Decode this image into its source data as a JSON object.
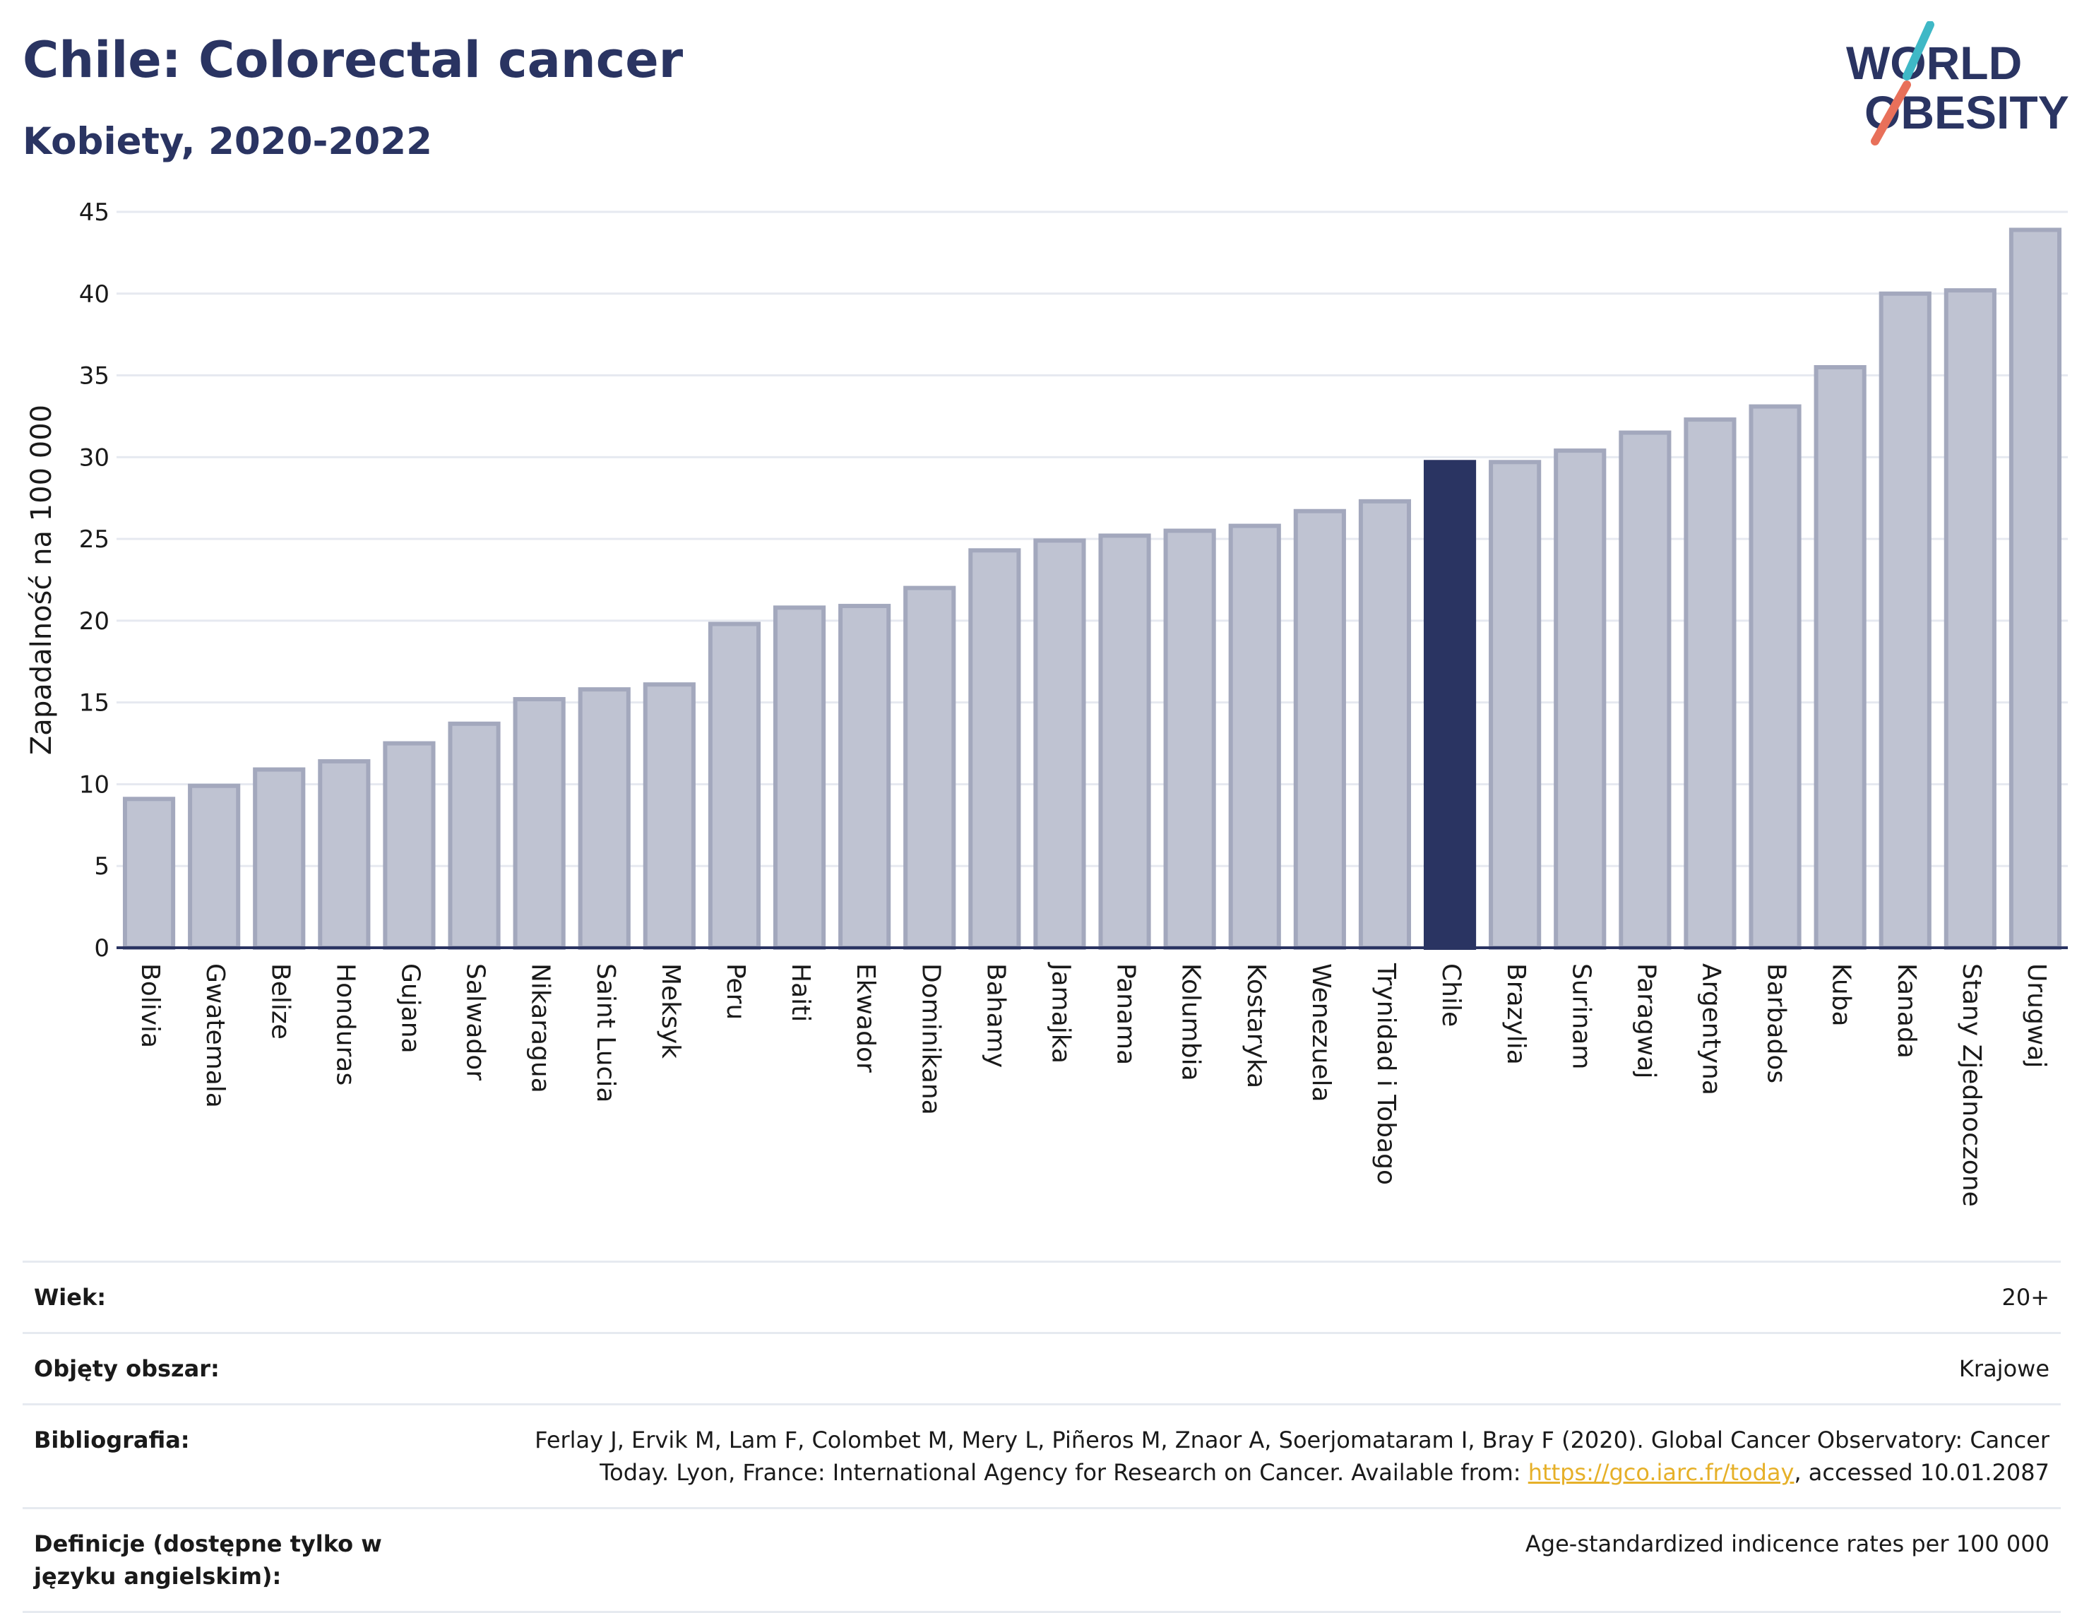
{
  "header": {
    "title": "Chile: Colorectal cancer",
    "subtitle": "Kobiety, 2020-2022"
  },
  "logo": {
    "text_line1": "WORLD",
    "text_line2": "OBESITY",
    "color_text": "#2a3462",
    "color_slash_top": "#3fb8c6",
    "color_slash_bottom": "#e8705a"
  },
  "colors": {
    "bar": "#bfc3d2",
    "bar_stroke": "#a3a8bd",
    "highlight": "#2a3462",
    "grid": "#e6e9f0",
    "axis": "#2a3462"
  },
  "chart_data": {
    "type": "bar",
    "ylabel": "Zapadalność na 100 000",
    "xlabel": "",
    "ylim": [
      0,
      45
    ],
    "yticks": [
      0,
      5,
      10,
      15,
      20,
      25,
      30,
      35,
      40,
      45
    ],
    "grid": true,
    "highlight": "Chile",
    "categories": [
      "Bolivia",
      "Gwatemala",
      "Belize",
      "Honduras",
      "Gujana",
      "Salwador",
      "Nikaragua",
      "Saint Lucia",
      "Meksyk",
      "Peru",
      "Haiti",
      "Ekwador",
      "Dominikana",
      "Bahamy",
      "Jamajka",
      "Panama",
      "Kolumbia",
      "Kostaryka",
      "Wenezuela",
      "Trynidad i Tobago",
      "Chile",
      "Brazylia",
      "Surinam",
      "Paragwaj",
      "Argentyna",
      "Barbados",
      "Kuba",
      "Kanada",
      "Stany Zjednoczone",
      "Urugwaj"
    ],
    "values": [
      9.1,
      9.9,
      10.9,
      11.4,
      12.5,
      13.7,
      15.2,
      15.8,
      16.1,
      19.8,
      20.8,
      20.9,
      22.0,
      24.3,
      24.9,
      25.2,
      25.5,
      25.8,
      26.7,
      27.3,
      29.7,
      29.7,
      30.4,
      31.5,
      32.3,
      33.1,
      35.5,
      40.0,
      40.2,
      43.9
    ]
  },
  "info": {
    "age_label": "Wiek:",
    "age_value": "20+",
    "area_label": "Objęty obszar:",
    "area_value": "Krajowe",
    "biblio_label": "Bibliografia:",
    "biblio_line1": "Ferlay J, Ervik M, Lam F, Colombet M, Mery L, Piñeros M, Znaor A, Soerjomataram I, Bray F (2020). Global Cancer Observatory: Cancer",
    "biblio_line2_pre": "Today. Lyon, France: International Agency for Research on Cancer. Available from: ",
    "biblio_link": "https://gco.iarc.fr/today",
    "biblio_line2_post": ", accessed 10.01.2087",
    "def_label": "Definicje (dostępne tylko w języku angielskim):",
    "def_value": "Age-standardized indicence rates per 100 000"
  }
}
